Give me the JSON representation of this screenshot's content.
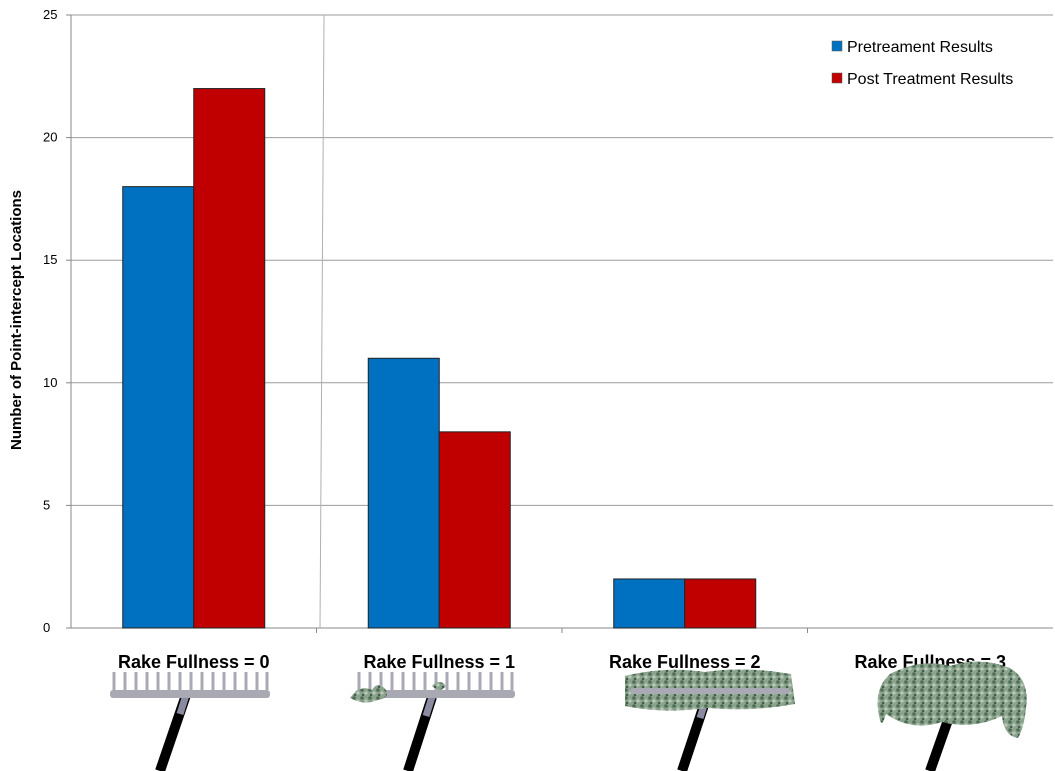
{
  "chart_data": {
    "type": "bar",
    "title": "",
    "xlabel": "",
    "ylabel": "Number of Point-intercept Locations",
    "categories": [
      "Rake Fullness = 0",
      "Rake Fullness = 1",
      "Rake Fullness = 2",
      "Rake Fullness = 3"
    ],
    "series": [
      {
        "name": "Pretreament Results",
        "values": [
          18,
          11,
          2,
          0
        ],
        "color": "#0070C0"
      },
      {
        "name": "Post Treatment Results",
        "values": [
          22,
          8,
          2,
          0
        ],
        "color": "#C00000"
      }
    ],
    "ylim": [
      0,
      25
    ],
    "yticks": [
      0,
      5,
      10,
      15,
      20,
      25
    ],
    "grid": true,
    "legend": "top-right",
    "category_images": [
      "rake-empty",
      "rake-sparse",
      "rake-moderate",
      "rake-full"
    ]
  }
}
